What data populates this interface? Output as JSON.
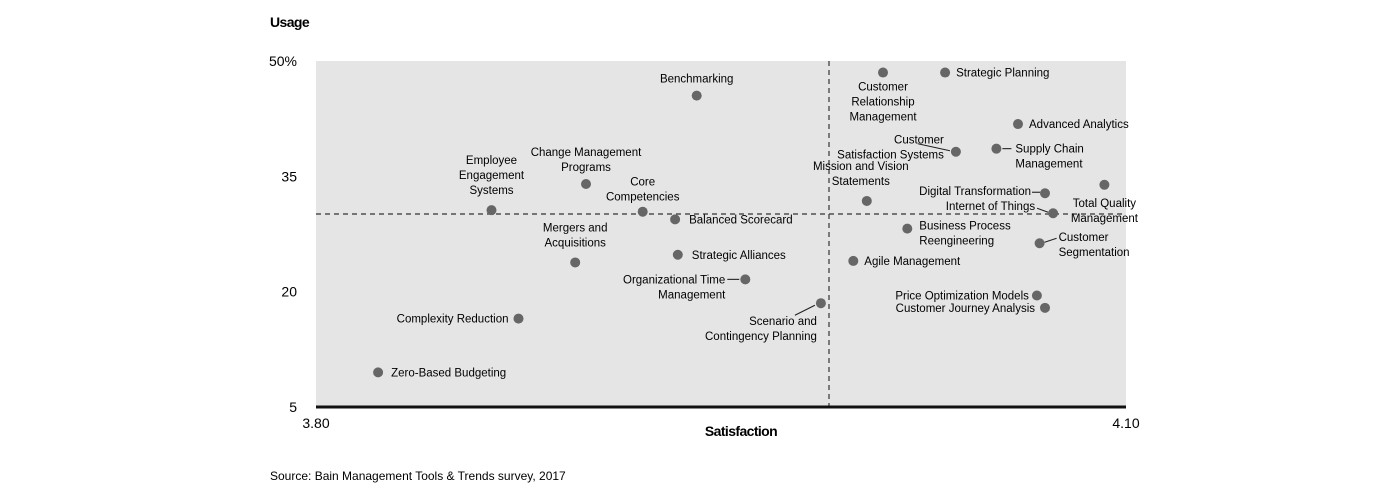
{
  "chart_data": {
    "type": "scatter",
    "ylabel": "Usage",
    "xlabel": "Satisfaction",
    "xlim": [
      3.8,
      4.1
    ],
    "ylim": [
      5,
      50
    ],
    "x_ticks": [
      "3.80",
      "4.10"
    ],
    "y_ticks": [
      {
        "value": 50,
        "label": "50%"
      },
      {
        "value": 35,
        "label": "35"
      },
      {
        "value": 20,
        "label": "20"
      },
      {
        "value": 5,
        "label": "5"
      }
    ],
    "reference_lines": {
      "x": 3.99,
      "y": 30.1
    },
    "grid": false,
    "plot_background": "#e5e5e5",
    "point_color": "#666666",
    "source": "Source: Bain Management Tools & Trends survey, 2017",
    "points": [
      {
        "name": "Zero-Based Budgeting",
        "lines": [
          "Zero-Based Budgeting"
        ],
        "x": 3.823,
        "y": 9.5
      },
      {
        "name": "Complexity Reduction",
        "lines": [
          "Complexity Reduction"
        ],
        "x": 3.875,
        "y": 16.5
      },
      {
        "name": "Employee Engagement Systems",
        "lines": [
          "Employee",
          "Engagement",
          "Systems"
        ],
        "x": 3.865,
        "y": 30.6
      },
      {
        "name": "Change Management Programs",
        "lines": [
          "Change Management",
          "Programs"
        ],
        "x": 3.9,
        "y": 34.0
      },
      {
        "name": "Mergers and Acquisitions",
        "lines": [
          "Mergers and",
          "Acquisitions"
        ],
        "x": 3.896,
        "y": 23.8
      },
      {
        "name": "Core Competencies",
        "lines": [
          "Core",
          "Competencies"
        ],
        "x": 3.921,
        "y": 30.4
      },
      {
        "name": "Benchmarking",
        "lines": [
          "Benchmarking"
        ],
        "x": 3.941,
        "y": 45.5
      },
      {
        "name": "Balanced Scorecard",
        "lines": [
          "Balanced Scorecard"
        ],
        "x": 3.933,
        "y": 29.4
      },
      {
        "name": "Strategic Alliances",
        "lines": [
          "Strategic Alliances"
        ],
        "x": 3.934,
        "y": 24.8
      },
      {
        "name": "Organizational Time Management",
        "lines": [
          "Organizational Time",
          "Management"
        ],
        "x": 3.959,
        "y": 21.6
      },
      {
        "name": "Scenario and Contingency Planning",
        "lines": [
          "Scenario and",
          "Contingency Planning"
        ],
        "x": 3.987,
        "y": 18.5
      },
      {
        "name": "Customer Relationship Management",
        "lines": [
          "Customer",
          "Relationship",
          "Management"
        ],
        "x": 4.01,
        "y": 48.5
      },
      {
        "name": "Strategic Planning",
        "lines": [
          "Strategic Planning"
        ],
        "x": 4.033,
        "y": 48.5
      },
      {
        "name": "Customer Satisfaction Systems",
        "lines": [
          "Customer",
          "Satisfaction Systems"
        ],
        "x": 4.037,
        "y": 38.2
      },
      {
        "name": "Mission and Vision Statements",
        "lines": [
          "Mission and Vision",
          "Statements"
        ],
        "x": 4.004,
        "y": 31.8
      },
      {
        "name": "Agile Management",
        "lines": [
          "Agile Management"
        ],
        "x": 3.999,
        "y": 24.0
      },
      {
        "name": "Business Process Reengineering",
        "lines": [
          "Business Process",
          "Reengineering"
        ],
        "x": 4.019,
        "y": 28.2
      },
      {
        "name": "Advanced Analytics",
        "lines": [
          "Advanced Analytics"
        ],
        "x": 4.06,
        "y": 41.8
      },
      {
        "name": "Supply Chain Management",
        "lines": [
          "Supply Chain",
          "Management"
        ],
        "x": 4.052,
        "y": 38.6
      },
      {
        "name": "Digital Transformation",
        "lines": [
          "Digital Transformation"
        ],
        "x": 4.07,
        "y": 32.8
      },
      {
        "name": "Internet of Things",
        "lines": [
          "Internet of Things"
        ],
        "x": 4.073,
        "y": 30.2
      },
      {
        "name": "Total Quality Management",
        "lines": [
          "Total Quality",
          "Management"
        ],
        "x": 4.092,
        "y": 33.9
      },
      {
        "name": "Customer Segmentation",
        "lines": [
          "Customer",
          "Segmentation"
        ],
        "x": 4.068,
        "y": 26.3
      },
      {
        "name": "Price Optimization Models",
        "lines": [
          "Price Optimization Models"
        ],
        "x": 4.067,
        "y": 19.5
      },
      {
        "name": "Customer Journey Analysis",
        "lines": [
          "Customer Journey Analysis"
        ],
        "x": 4.07,
        "y": 17.9
      }
    ]
  }
}
